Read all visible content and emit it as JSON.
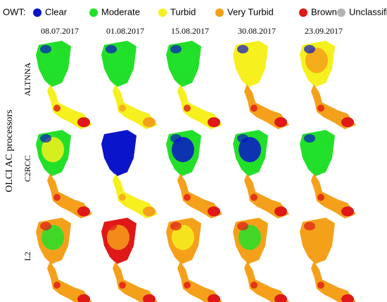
{
  "legend": {
    "title": "OWT:",
    "items": [
      {
        "label": "Clear",
        "color": "#0a14c8"
      },
      {
        "label": "Moderate",
        "color": "#22e02a"
      },
      {
        "label": "Turbid",
        "color": "#f5f01e"
      },
      {
        "label": "Very Turbid",
        "color": "#f5a01a"
      },
      {
        "label": "Brown",
        "color": "#e01818"
      },
      {
        "label": "Unclassified",
        "color": "#b4b4b4"
      }
    ]
  },
  "dates": [
    "08.07.2017",
    "01.08.2017",
    "15.08.2017",
    "30.08.2017",
    "23.09.2017"
  ],
  "y_label": "OLCI AC processors",
  "rows": [
    "ALTNNA",
    "C2RCC",
    "L2"
  ]
}
